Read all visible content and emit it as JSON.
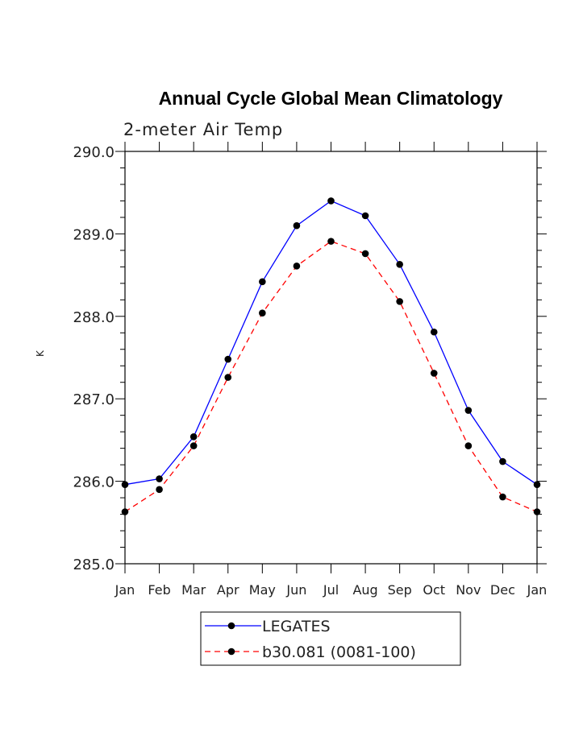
{
  "chart_data": {
    "type": "line",
    "title": "Annual Cycle Global Mean Climatology",
    "subtitle": "2-meter Air Temp",
    "ylabel": "K",
    "xlabel": "",
    "ylim": [
      285.0,
      290.0
    ],
    "yticks": [
      "285.0",
      "286.0",
      "287.0",
      "288.0",
      "289.0",
      "290.0"
    ],
    "categories": [
      "Jan",
      "Feb",
      "Mar",
      "Apr",
      "May",
      "Jun",
      "Jul",
      "Aug",
      "Sep",
      "Oct",
      "Nov",
      "Dec",
      "Jan"
    ],
    "series": [
      {
        "name": "LEGATES",
        "color": "#0000ff",
        "dash": "solid",
        "values": [
          285.96,
          286.03,
          286.54,
          287.48,
          288.42,
          289.1,
          289.4,
          289.22,
          288.63,
          287.81,
          286.86,
          286.24,
          285.96
        ]
      },
      {
        "name": "b30.081 (0081-100)",
        "color": "#ff0000",
        "dash": "dashed",
        "values": [
          285.63,
          285.9,
          286.43,
          287.26,
          288.04,
          288.61,
          288.91,
          288.76,
          288.18,
          287.31,
          286.43,
          285.81,
          285.63
        ]
      }
    ],
    "legend_position": "bottom-center",
    "grid": false
  }
}
